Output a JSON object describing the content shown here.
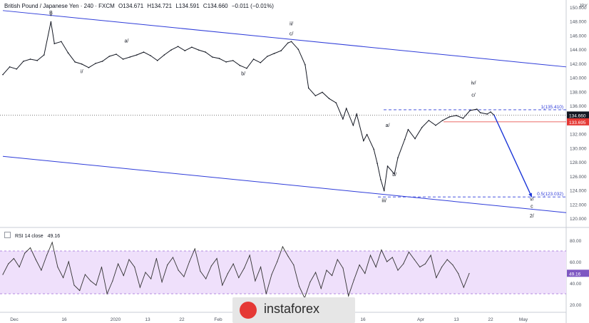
{
  "header": {
    "symbol": "British Pound / Japanese Yen · 240 · FXCM",
    "open": "O134.671",
    "high": "H134.721",
    "low": "L134.591",
    "close": "C134.660",
    "change": "−0.011 (−0.01%)"
  },
  "rsi_header": {
    "label": "RSI 14 close",
    "value": "49.16"
  },
  "watermark": {
    "text": "instaforex"
  },
  "colors": {
    "channel": "#2e3cd9",
    "price": "#131722",
    "red_label": "#e53935",
    "rsi_line": "#333333",
    "rsi_band": "#efe0fb",
    "forecast": "#1a35d8"
  },
  "chart_data": [
    {
      "type": "line",
      "title": "British Pound / Japanese Yen · 240 · FXCM",
      "currency": "JPY",
      "y_ticks": [
        "150.000",
        "148.000",
        "146.000",
        "144.000",
        "142.000",
        "140.000",
        "138.000",
        "136.000",
        "134.000",
        "132.000",
        "130.000",
        "128.000",
        "126.000",
        "124.000",
        "122.000",
        "120.000"
      ],
      "x_ticks": [
        "Dec",
        "16",
        "2020",
        "13",
        "22",
        "Feb",
        "16",
        "Apr",
        "13",
        "22",
        "May"
      ],
      "ylim": [
        119,
        151
      ],
      "price_points": [
        [
          "2019-11-29",
          140.4
        ],
        [
          "2019-12-01",
          141.5
        ],
        [
          "2019-12-03",
          141.2
        ],
        [
          "2019-12-05",
          142.3
        ],
        [
          "2019-12-07",
          142.6
        ],
        [
          "2019-12-09",
          142.4
        ],
        [
          "2019-12-11",
          143.2
        ],
        [
          "2019-12-13",
          147.9
        ],
        [
          "2019-12-14",
          144.8
        ],
        [
          "2019-12-16",
          145.1
        ],
        [
          "2019-12-18",
          143.5
        ],
        [
          "2019-12-20",
          142.2
        ],
        [
          "2019-12-22",
          141.9
        ],
        [
          "2019-12-24",
          141.4
        ],
        [
          "2019-12-26",
          142.0
        ],
        [
          "2019-12-28",
          142.3
        ],
        [
          "2019-12-30",
          143.0
        ],
        [
          "2020-01-01",
          143.3
        ],
        [
          "2020-01-03",
          142.6
        ],
        [
          "2020-01-05",
          142.9
        ],
        [
          "2020-01-07",
          143.2
        ],
        [
          "2020-01-09",
          143.6
        ],
        [
          "2020-01-11",
          143.1
        ],
        [
          "2020-01-13",
          142.4
        ],
        [
          "2020-01-15",
          143.2
        ],
        [
          "2020-01-17",
          143.9
        ],
        [
          "2020-01-19",
          144.4
        ],
        [
          "2020-01-21",
          143.8
        ],
        [
          "2020-01-23",
          144.3
        ],
        [
          "2020-01-25",
          143.9
        ],
        [
          "2020-01-27",
          143.6
        ],
        [
          "2020-01-29",
          142.9
        ],
        [
          "2020-01-31",
          142.7
        ],
        [
          "2020-02-02",
          142.2
        ],
        [
          "2020-02-04",
          142.4
        ],
        [
          "2020-02-06",
          141.7
        ],
        [
          "2020-02-08",
          141.3
        ],
        [
          "2020-02-10",
          142.6
        ],
        [
          "2020-02-12",
          142.1
        ],
        [
          "2020-02-14",
          143.0
        ],
        [
          "2020-02-16",
          143.4
        ],
        [
          "2020-02-18",
          143.8
        ],
        [
          "2020-02-20",
          144.9
        ],
        [
          "2020-02-21",
          145.1
        ],
        [
          "2020-02-23",
          144.0
        ],
        [
          "2020-02-25",
          141.8
        ],
        [
          "2020-02-26",
          138.5
        ],
        [
          "2020-02-28",
          137.4
        ],
        [
          "2020-03-01",
          137.9
        ],
        [
          "2020-03-03",
          137.0
        ],
        [
          "2020-03-05",
          136.4
        ],
        [
          "2020-03-07",
          134.1
        ],
        [
          "2020-03-08",
          135.6
        ],
        [
          "2020-03-10",
          133.2
        ],
        [
          "2020-03-11",
          134.8
        ],
        [
          "2020-03-13",
          131.0
        ],
        [
          "2020-03-14",
          131.9
        ],
        [
          "2020-03-16",
          129.8
        ],
        [
          "2020-03-17",
          127.8
        ],
        [
          "2020-03-18",
          125.5
        ],
        [
          "2020-03-19",
          123.9
        ],
        [
          "2020-03-20",
          127.4
        ],
        [
          "2020-03-22",
          126.3
        ],
        [
          "2020-03-23",
          128.6
        ],
        [
          "2020-03-25",
          131.2
        ],
        [
          "2020-03-26",
          132.6
        ],
        [
          "2020-03-28",
          131.3
        ],
        [
          "2020-03-30",
          132.9
        ],
        [
          "2020-04-01",
          133.9
        ],
        [
          "2020-04-03",
          133.2
        ],
        [
          "2020-04-05",
          133.9
        ],
        [
          "2020-04-07",
          134.4
        ],
        [
          "2020-04-09",
          134.6
        ],
        [
          "2020-04-11",
          134.2
        ],
        [
          "2020-04-13",
          135.3
        ],
        [
          "2020-04-15",
          135.5
        ],
        [
          "2020-04-16",
          135.0
        ],
        [
          "2020-04-18",
          134.8
        ],
        [
          "2020-04-19",
          135.1
        ],
        [
          "2020-04-20",
          134.66
        ]
      ],
      "forecast_path": [
        [
          "2020-04-20",
          134.66
        ],
        [
          "2020-05-01",
          123.0
        ]
      ],
      "channel_upper": [
        [
          "2019-11-29",
          149.5
        ],
        [
          "2020-05-11",
          141.5
        ]
      ],
      "channel_lower": [
        [
          "2019-11-29",
          128.8
        ],
        [
          "2020-05-11",
          120.8
        ]
      ],
      "horizontal_lines": [
        {
          "label": "1(135.410)",
          "value": 135.41,
          "style": "dashed"
        },
        {
          "label": "0.5(123.032)",
          "value": 123.032,
          "style": "dashed"
        },
        {
          "value": 133.695,
          "style": "solid-red"
        },
        {
          "value": 134.66,
          "style": "dotted"
        }
      ],
      "price_labels": [
        {
          "text": "134.660",
          "value": 134.66
        },
        {
          "text": "03:18:36",
          "value": 134.0
        },
        {
          "text": "133.695",
          "value": 133.695
        }
      ],
      "annotations": [
        {
          "text": "B",
          "date": "2019-12-13",
          "value": 149.0
        },
        {
          "text": "v",
          "date": "2019-12-13",
          "value": 148.7
        },
        {
          "text": "a/",
          "date": "2020-01-04",
          "value": 145.0
        },
        {
          "text": "i/",
          "date": "2019-12-22",
          "value": 140.6
        },
        {
          "text": "ii/",
          "date": "2020-02-21",
          "value": 147.4
        },
        {
          "text": "c/",
          "date": "2020-02-21",
          "value": 146.0
        },
        {
          "text": "b/",
          "date": "2020-02-07",
          "value": 140.3
        },
        {
          "text": "a/",
          "date": "2020-03-20",
          "value": 133.0
        },
        {
          "text": "b/",
          "date": "2020-03-22",
          "value": 126.0
        },
        {
          "text": "iii/",
          "date": "2020-03-19",
          "value": 122.3
        },
        {
          "text": "iv/",
          "date": "2020-04-14",
          "value": 139.0
        },
        {
          "text": "c/",
          "date": "2020-04-14",
          "value": 137.3
        },
        {
          "text": "v/",
          "date": "2020-05-01",
          "value": 122.5
        },
        {
          "text": "c",
          "date": "2020-05-01",
          "value": 121.5
        },
        {
          "text": "2/",
          "date": "2020-05-01",
          "value": 120.1
        }
      ]
    },
    {
      "type": "line",
      "title": "RSI 14 close",
      "y_ticks": [
        "80.00",
        "60.00",
        "40.00",
        "20.00"
      ],
      "ylim": [
        14,
        90
      ],
      "band": [
        30,
        70
      ],
      "current": 49.16,
      "values": [
        48,
        58,
        63,
        55,
        68,
        73,
        62,
        52,
        66,
        78,
        55,
        45,
        60,
        38,
        33,
        48,
        42,
        38,
        55,
        30,
        42,
        58,
        47,
        62,
        55,
        36,
        50,
        44,
        63,
        41,
        57,
        64,
        52,
        46,
        60,
        72,
        51,
        44,
        56,
        63,
        38,
        49,
        58,
        45,
        54,
        66,
        42,
        55,
        30,
        48,
        60,
        74,
        65,
        57,
        37,
        26,
        41,
        50,
        35,
        52,
        47,
        62,
        54,
        28,
        43,
        57,
        49,
        66,
        55,
        71,
        60,
        64,
        52,
        58,
        69,
        62,
        55,
        58,
        66,
        45,
        55,
        62,
        57,
        49,
        36,
        49
      ]
    }
  ]
}
